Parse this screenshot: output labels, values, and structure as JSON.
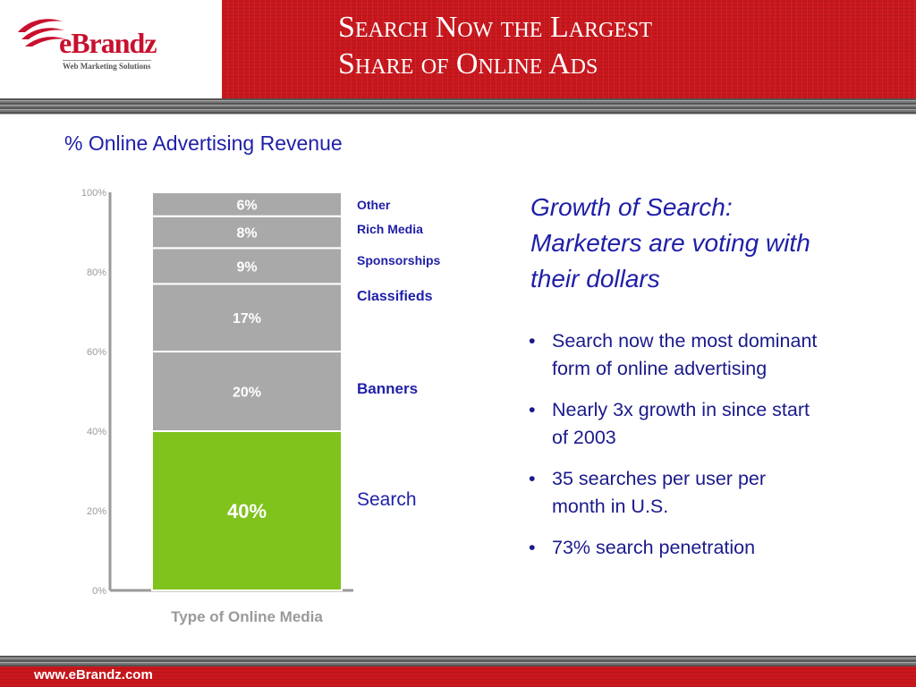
{
  "header": {
    "logo_text": "eBrandz",
    "logo_tagline": "Web Marketing Solutions",
    "title_line1": "Search Now the Largest",
    "title_line2": "Share of Online Ads"
  },
  "colors": {
    "header_red": "#c8171d",
    "text_blue": "#1f1fa8",
    "bar_gray": "#a9a9a9",
    "search_green": "#7fc31c"
  },
  "chart_data": {
    "type": "bar",
    "stacked": true,
    "title": "% Online Advertising Revenue",
    "xlabel": "Type of Online Media",
    "ylabel": "",
    "ylim": [
      0,
      100
    ],
    "yticks": [
      "0%",
      "20%",
      "40%",
      "60%",
      "80%",
      "100%"
    ],
    "categories": [
      "Type of Online Media"
    ],
    "series": [
      {
        "name": "Search",
        "values": [
          40
        ],
        "label": "40%",
        "color": "#7fc31c"
      },
      {
        "name": "Banners",
        "values": [
          20
        ],
        "label": "20%",
        "color": "#a9a9a9"
      },
      {
        "name": "Classifieds",
        "values": [
          17
        ],
        "label": "17%",
        "color": "#a9a9a9"
      },
      {
        "name": "Sponsorships",
        "values": [
          9
        ],
        "label": "9%",
        "color": "#a9a9a9"
      },
      {
        "name": "Rich Media",
        "values": [
          8
        ],
        "label": "8%",
        "color": "#a9a9a9"
      },
      {
        "name": "Other",
        "values": [
          6
        ],
        "label": "6%",
        "color": "#a9a9a9"
      }
    ]
  },
  "side": {
    "heading": "Growth of Search: Marketers are voting with their dollars",
    "bullets": [
      "Search now the most dominant form of online advertising",
      "Nearly 3x growth in since start of 2003",
      "35 searches per user per month in U.S.",
      "73% search penetration"
    ]
  },
  "footer": {
    "url": "www.eBrandz.com"
  }
}
